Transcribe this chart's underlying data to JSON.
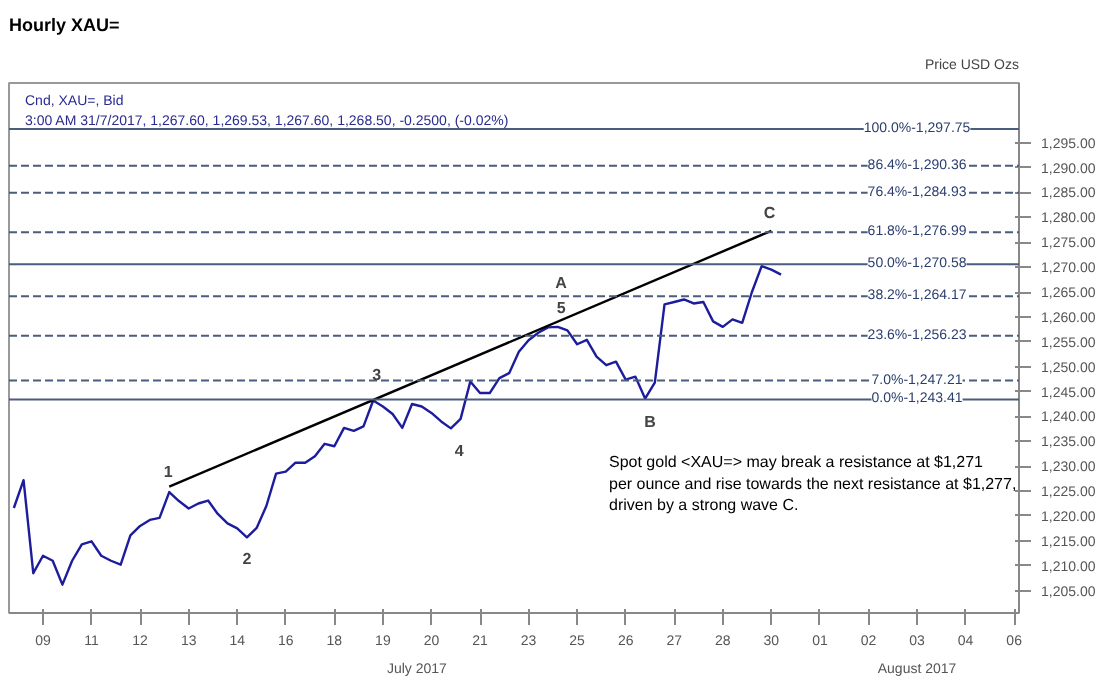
{
  "chart_data": {
    "type": "line",
    "title": "Hourly XAU=",
    "subtitle": "Cnd, XAU=, Bid",
    "ylabel": "Price USD Ozs",
    "categories": [
      null,
      null,
      null,
      "09",
      null,
      null,
      null,
      null,
      "11",
      null,
      null,
      null,
      null,
      "12",
      null,
      null,
      null,
      null,
      "13",
      null,
      null,
      null,
      null,
      "14",
      null,
      null,
      null,
      null,
      "16",
      null,
      null,
      null,
      null,
      "18",
      null,
      null,
      null,
      null,
      "19",
      null,
      null,
      null,
      null,
      "20",
      null,
      null,
      null,
      null,
      "21",
      null,
      null,
      null,
      null,
      "23",
      null,
      null,
      null,
      null,
      "25",
      null,
      null,
      null,
      null,
      "26",
      null,
      null,
      null,
      null,
      "27",
      null,
      null,
      null,
      null,
      "28",
      null,
      null,
      null,
      null,
      "30",
      null,
      null,
      null,
      null,
      "01",
      null,
      null,
      null,
      null,
      "02",
      null,
      null,
      null,
      null,
      "03",
      null,
      null,
      null,
      null,
      "04",
      null,
      null,
      null,
      null,
      "06"
    ],
    "ylim": [
      1200.5,
      1307
    ],
    "yticks": [
      {
        "value": 1205,
        "label": "1,205.00"
      },
      {
        "value": 1210,
        "label": "1,210.00"
      },
      {
        "value": 1215,
        "label": "1,215.00"
      },
      {
        "value": 1220,
        "label": "1,220.00"
      },
      {
        "value": 1225,
        "label": "1,225.00"
      },
      {
        "value": 1230,
        "label": "1,230.00"
      },
      {
        "value": 1235,
        "label": "1,235.00"
      },
      {
        "value": 1240,
        "label": "1,240.00"
      },
      {
        "value": 1245,
        "label": "1,245.00"
      },
      {
        "value": 1250,
        "label": "1,250.00"
      },
      {
        "value": 1255,
        "label": "1,255.00"
      },
      {
        "value": 1260,
        "label": "1,260.00"
      },
      {
        "value": 1265,
        "label": "1,265.00"
      },
      {
        "value": 1270,
        "label": "1,270.00"
      },
      {
        "value": 1275,
        "label": "1,275.00"
      },
      {
        "value": 1280,
        "label": "1,280.00"
      },
      {
        "value": 1285,
        "label": "1,285.00"
      },
      {
        "value": 1290,
        "label": "1,290.00"
      },
      {
        "value": 1295,
        "label": "1,295.00"
      }
    ],
    "grid": false,
    "marker": "none",
    "series": [
      {
        "color": "#1c1c9c",
        "values": [
          1221.6,
          1227.2,
          1208.5,
          1212.0,
          1211.0,
          1206.2,
          1211.0,
          1214.3,
          1214.9,
          1212.0,
          1211.0,
          1210.2,
          1216.1,
          1218.0,
          1219.2,
          1219.6,
          1224.8,
          1223.0,
          1221.5,
          1222.5,
          1223.1,
          1220.4,
          1218.5,
          1217.5,
          1215.7,
          1217.6,
          1222.0,
          1228.5,
          1228.9,
          1230.7,
          1230.7,
          1232.0,
          1234.5,
          1234.0,
          1237.7,
          1237.1,
          1238.0,
          1243.2,
          1242.0,
          1240.5,
          1237.7,
          1242.5,
          1242.0,
          1240.7,
          1239.0,
          1237.6,
          1239.5,
          1247.0,
          1244.7,
          1244.7,
          1247.7,
          1248.7,
          1253.0,
          1255.3,
          1256.8,
          1257.9,
          1258.0,
          1257.3,
          1254.5,
          1255.4,
          1252.0,
          1250.3,
          1251.0,
          1247.4,
          1248.0,
          1243.6,
          1246.8,
          1262.5,
          1263.0,
          1263.5,
          1262.7,
          1263.0,
          1259.1,
          1258.0,
          1259.5,
          1258.8,
          1265.0,
          1270.2,
          1269.5,
          1268.5,
          null,
          null,
          null,
          null,
          null,
          null,
          null,
          null,
          null,
          null,
          null,
          null,
          null,
          null,
          null,
          null,
          null,
          null,
          null,
          null,
          null,
          null,
          null,
          null
        ]
      },
      {
        "color": "#000000",
        "values": [
          null,
          null,
          null,
          null,
          null,
          null,
          null,
          null,
          null,
          null,
          null,
          null,
          null,
          null,
          null,
          null,
          1225.9,
          null,
          null,
          null,
          null,
          null,
          null,
          null,
          null,
          null,
          null,
          null,
          null,
          null,
          null,
          null,
          null,
          null,
          null,
          null,
          null,
          null,
          null,
          null,
          null,
          null,
          null,
          null,
          null,
          null,
          null,
          null,
          null,
          null,
          null,
          null,
          null,
          null,
          null,
          null,
          null,
          null,
          null,
          null,
          null,
          null,
          null,
          null,
          null,
          null,
          null,
          null,
          null,
          null,
          null,
          null,
          null,
          null,
          null,
          null,
          null,
          null,
          1277.3,
          null,
          null,
          null,
          null,
          null,
          null,
          null,
          null,
          null,
          null,
          null,
          null,
          null,
          null,
          null,
          null,
          null,
          null,
          null,
          null,
          null,
          null,
          null,
          null,
          null
        ]
      }
    ],
    "ref_lines": [
      {
        "axis": "y",
        "value": 1297.75,
        "color": "#4a5d7e",
        "line_style": "solid"
      },
      {
        "axis": "y",
        "value": 1290.36,
        "color": "#4a5d7e",
        "line_style": "dashed"
      },
      {
        "axis": "y",
        "value": 1284.93,
        "color": "#4a5d7e",
        "line_style": "dashed"
      },
      {
        "axis": "y",
        "value": 1276.99,
        "color": "#4a5d7e",
        "line_style": "dashed"
      },
      {
        "axis": "y",
        "value": 1270.58,
        "color": "#4a5d7e",
        "line_style": "solid"
      },
      {
        "axis": "y",
        "value": 1264.17,
        "color": "#4a5d7e",
        "line_style": "dashed"
      },
      {
        "axis": "y",
        "value": 1256.23,
        "color": "#4a5d7e",
        "line_style": "dashed"
      },
      {
        "axis": "y",
        "value": 1247.21,
        "color": "#4a5d7e",
        "line_style": "dashed"
      },
      {
        "axis": "y",
        "value": 1243.41,
        "color": "#4a5d7e",
        "line_style": "solid"
      }
    ],
    "annotations": [
      "3:00 AM 31/7/2017, 1,267.60, 1,269.53, 1,267.60, 1,268.50, -0.2500, (-0.02%)",
      "Spot gold <XAU=> may break a resistance at $1,271\nper ounce and rise towards the next resistance at $1,277,\ndriven by a strong wave C.",
      "July 2017",
      "August 2017",
      "1",
      "2",
      "3",
      "4",
      "5",
      "A",
      "B",
      "C",
      {
        "text": "100.0%-1,297.75",
        "x": "03",
        "y": 1297.75
      },
      {
        "text": "86.4%-1,290.36",
        "x": "03",
        "y": 1290.36
      },
      {
        "text": "76.4%-1,284.93",
        "x": "03",
        "y": 1284.93
      },
      {
        "text": "61.8%-1,276.99",
        "x": "03",
        "y": 1276.99
      },
      {
        "text": "50.0%-1,270.58",
        "x": "03",
        "y": 1270.58
      },
      {
        "text": "38.2%-1,264.17",
        "x": "03",
        "y": 1264.17
      },
      {
        "text": "23.6%-1,256.23",
        "x": "03",
        "y": 1256.23
      },
      {
        "text": "7.0%-1,247.21",
        "x": "03",
        "y": 1247.21
      },
      {
        "text": "0.0%-1,243.41",
        "x": "03",
        "y": 1243.41
      }
    ]
  }
}
